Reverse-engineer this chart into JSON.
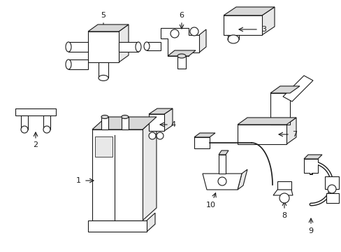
{
  "background_color": "#ffffff",
  "line_color": "#1a1a1a",
  "line_width": 0.8,
  "fill_color": "#ffffff",
  "shade_color": "#e8e8e8",
  "shade_color2": "#d8d8d8"
}
